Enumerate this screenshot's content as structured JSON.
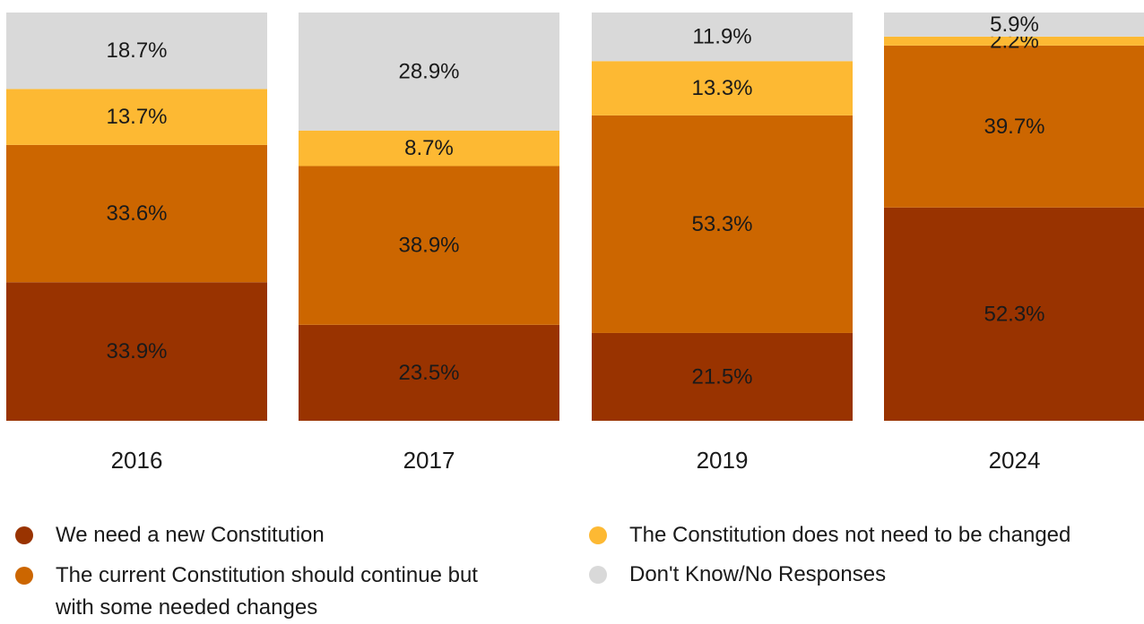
{
  "chart_data": {
    "type": "bar",
    "stacked": true,
    "categories": [
      "2016",
      "2017",
      "2019",
      "2024"
    ],
    "ylim": [
      0,
      100
    ],
    "grid": false,
    "legend_position": "bottom",
    "series": [
      {
        "name": "We need a new Constitution",
        "color": "#993300",
        "values": [
          33.9,
          23.5,
          21.5,
          52.3
        ],
        "labels": [
          "33.9%",
          "23.5%",
          "21.5%",
          "52.3%"
        ]
      },
      {
        "name": "The current Constitution should continue but with some needed changes",
        "color": "#CC6600",
        "values": [
          33.6,
          38.9,
          53.3,
          39.7
        ],
        "labels": [
          "33.6%",
          "38.9%",
          "53.3%",
          "39.7%"
        ]
      },
      {
        "name": "The Constitution does not need to be changed",
        "color": "#FDB933",
        "values": [
          13.7,
          8.7,
          13.3,
          2.2
        ],
        "labels": [
          "13.7%",
          "8.7%",
          "13.3%",
          "2.2%"
        ]
      },
      {
        "name": "Don't Know/No Responses",
        "color": "#D9D9D9",
        "values": [
          18.7,
          28.9,
          11.9,
          5.9
        ],
        "labels": [
          "18.7%",
          "28.9%",
          "11.9%",
          "5.9%"
        ]
      }
    ]
  }
}
